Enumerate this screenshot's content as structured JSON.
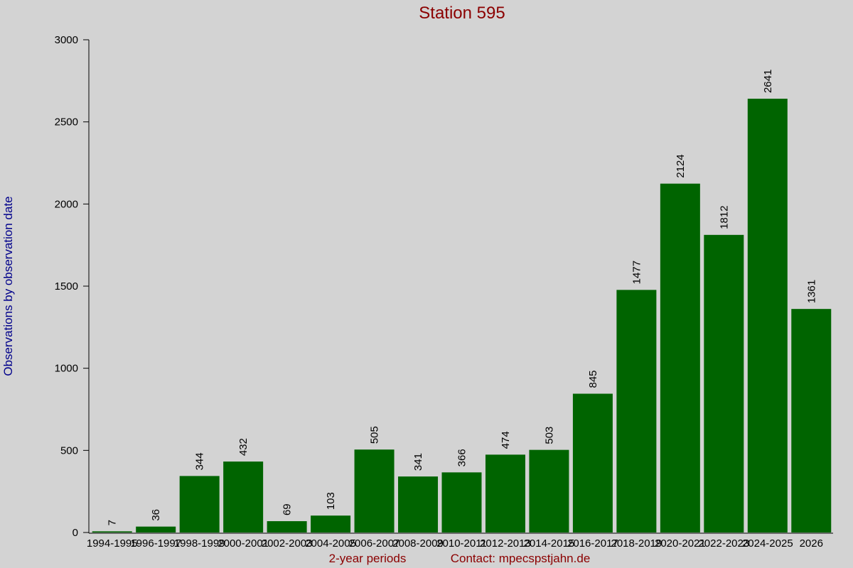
{
  "chart_data": {
    "type": "bar",
    "title": "Station 595",
    "x_label": "2-year periods",
    "contact": "Contact: mpecspstjahn.de",
    "y_label": "Observations by observation date",
    "categories": [
      "1994-1995",
      "1996-1997",
      "1998-1999",
      "2000-2001",
      "2002-2003",
      "2004-2005",
      "2006-2007",
      "2008-2009",
      "2010-2011",
      "2012-2013",
      "2014-2015",
      "2016-2017",
      "2018-2019",
      "2020-2021",
      "2022-2023",
      "2024-2025",
      "2026"
    ],
    "values": [
      7,
      36,
      344,
      432,
      69,
      103,
      505,
      341,
      366,
      474,
      503,
      845,
      1477,
      2124,
      1812,
      2641,
      1361
    ],
    "color": "#006400",
    "ylim": [
      0,
      3000
    ],
    "yticks": [
      0,
      500,
      1000,
      1500,
      2000,
      2500,
      3000
    ],
    "grid": false
  }
}
